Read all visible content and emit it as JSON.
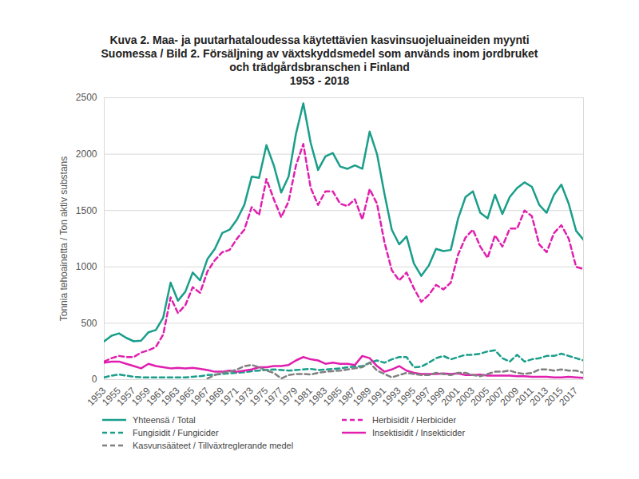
{
  "chart_data": {
    "type": "line",
    "title": "Kuva 2. Maa- ja puutarhataloudessa käytettävien kasvinsuojeluaineiden myynti Suomessa / Bild 2. Försäljning av växtskyddsmedel som används inom jordbruket och trädgårdsbranschen i Finland",
    "subtitle": "1953 - 2018",
    "y_label": "Tonnia tehoainetta / Ton aktiv substans",
    "x": [
      1953,
      1954,
      1955,
      1956,
      1957,
      1958,
      1959,
      1960,
      1961,
      1962,
      1963,
      1964,
      1965,
      1966,
      1967,
      1968,
      1969,
      1970,
      1971,
      1972,
      1973,
      1974,
      1975,
      1976,
      1977,
      1978,
      1979,
      1980,
      1981,
      1982,
      1983,
      1984,
      1985,
      1986,
      1987,
      1988,
      1989,
      1990,
      1991,
      1992,
      1993,
      1994,
      1995,
      1996,
      1997,
      1998,
      1999,
      2000,
      2001,
      2002,
      2003,
      2004,
      2005,
      2006,
      2007,
      2008,
      2009,
      2010,
      2011,
      2012,
      2013,
      2014,
      2015,
      2016,
      2017,
      2018
    ],
    "xlim": [
      1953,
      2018
    ],
    "xticks": [
      1953,
      1955,
      1957,
      1959,
      1961,
      1963,
      1965,
      1967,
      1969,
      1971,
      1973,
      1975,
      1977,
      1979,
      1981,
      1983,
      1985,
      1987,
      1989,
      1991,
      1993,
      1995,
      1997,
      1999,
      2001,
      2003,
      2005,
      2007,
      2009,
      2011,
      2013,
      2015,
      2017
    ],
    "ylim": [
      0,
      2500
    ],
    "yticks": [
      0,
      500,
      1000,
      1500,
      2000,
      2500
    ],
    "grid": true,
    "legend": "bottom",
    "series": [
      {
        "name": "Yhteensä / Total",
        "color": "#1a9e8a",
        "line_style": "solid",
        "values": [
          340,
          390,
          410,
          370,
          340,
          345,
          420,
          440,
          550,
          860,
          700,
          780,
          950,
          880,
          1070,
          1160,
          1300,
          1330,
          1420,
          1550,
          1800,
          1790,
          2080,
          1900,
          1660,
          1800,
          2180,
          2450,
          2100,
          1860,
          1980,
          2010,
          1890,
          1870,
          1900,
          1870,
          2200,
          2000,
          1650,
          1330,
          1200,
          1270,
          1030,
          920,
          1010,
          1160,
          1140,
          1150,
          1430,
          1620,
          1670,
          1480,
          1430,
          1640,
          1470,
          1620,
          1700,
          1750,
          1710,
          1550,
          1480,
          1640,
          1730,
          1560,
          1320,
          1240
        ]
      },
      {
        "name": "Herbisidit / Herbicider",
        "color": "#e01fae",
        "line_style": "dashed",
        "values": [
          160,
          190,
          210,
          200,
          200,
          240,
          260,
          290,
          400,
          730,
          590,
          660,
          820,
          770,
          960,
          1060,
          1130,
          1150,
          1250,
          1330,
          1530,
          1460,
          1780,
          1600,
          1440,
          1580,
          1900,
          2090,
          1700,
          1550,
          1670,
          1670,
          1560,
          1540,
          1600,
          1420,
          1690,
          1560,
          1220,
          970,
          880,
          950,
          810,
          690,
          750,
          840,
          800,
          860,
          1110,
          1260,
          1330,
          1180,
          1080,
          1280,
          1180,
          1340,
          1340,
          1500,
          1450,
          1200,
          1130,
          1300,
          1370,
          1250,
          1000,
          980
        ]
      },
      {
        "name": "Fungisidit / Fungicider",
        "color": "#1a9e8a",
        "line_style": "dashed",
        "values": [
          20,
          35,
          45,
          35,
          25,
          20,
          20,
          20,
          20,
          20,
          20,
          20,
          25,
          30,
          40,
          45,
          50,
          55,
          60,
          65,
          75,
          80,
          85,
          90,
          85,
          80,
          85,
          90,
          95,
          85,
          90,
          95,
          100,
          110,
          115,
          120,
          150,
          170,
          150,
          180,
          200,
          200,
          110,
          115,
          150,
          190,
          210,
          180,
          200,
          220,
          220,
          230,
          250,
          260,
          190,
          160,
          220,
          160,
          180,
          190,
          210,
          210,
          230,
          210,
          190,
          170
        ]
      },
      {
        "name": "Insektisidit / Insekticider",
        "color": "#e01fae",
        "line_style": "solid",
        "values": [
          150,
          160,
          160,
          140,
          120,
          100,
          140,
          120,
          110,
          100,
          105,
          100,
          105,
          95,
          85,
          70,
          70,
          80,
          70,
          80,
          90,
          110,
          110,
          120,
          120,
          130,
          170,
          200,
          180,
          170,
          140,
          150,
          140,
          140,
          130,
          210,
          190,
          120,
          70,
          90,
          120,
          80,
          60,
          50,
          50,
          50,
          55,
          50,
          55,
          40,
          40,
          45,
          35,
          35,
          35,
          35,
          30,
          30,
          25,
          25,
          25,
          20,
          20,
          25,
          20,
          15
        ]
      },
      {
        "name": "Kasvunsääteet / Tillväxtreglerande medel",
        "color": "#808080",
        "line_style": "dashed",
        "values": [
          null,
          null,
          null,
          null,
          null,
          null,
          null,
          null,
          null,
          null,
          null,
          null,
          null,
          null,
          10,
          40,
          60,
          70,
          90,
          120,
          130,
          110,
          80,
          60,
          10,
          40,
          50,
          50,
          45,
          60,
          70,
          75,
          80,
          90,
          100,
          110,
          150,
          80,
          50,
          20,
          40,
          60,
          50,
          40,
          40,
          60,
          50,
          40,
          60,
          60,
          40,
          30,
          50,
          70,
          70,
          80,
          60,
          50,
          60,
          90,
          90,
          80,
          90,
          80,
          80,
          60
        ]
      }
    ]
  }
}
